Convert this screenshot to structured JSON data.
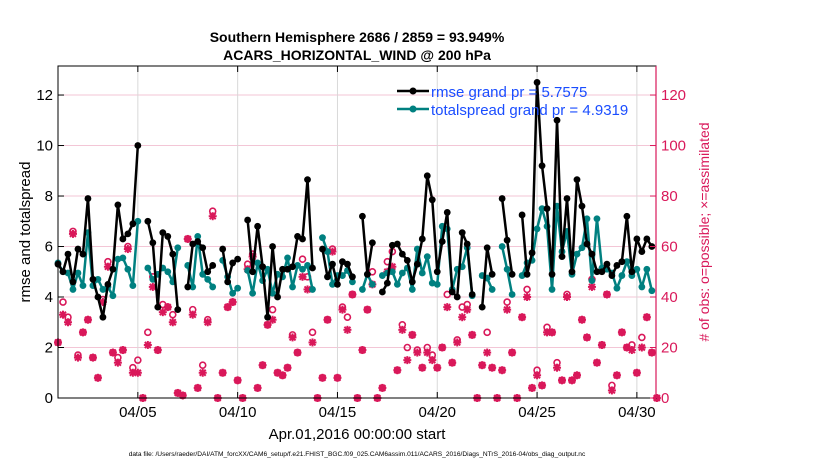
{
  "chart_data": {
    "type": "line",
    "title": "Southern Hemisphere 2686 / 2859 = 93.949%",
    "subtitle": "ACARS_HORIZONTAL_WIND @ 200 hPa",
    "xlabel": "Apr.01,2016 00:00:00 start",
    "ylabel": "rmse and totalspread",
    "ylabel_right": "# of obs: o=possible; ×=assimilated",
    "xlim": [
      "2016-04-01T00",
      "2016-04-30T23"
    ],
    "ylim": [
      0,
      13.15
    ],
    "ylim_right": [
      0,
      131.5
    ],
    "yticks": [
      0,
      2,
      4,
      6,
      8,
      10,
      12
    ],
    "yticks_right": [
      0,
      20,
      40,
      60,
      80,
      100,
      120
    ],
    "xticks": [
      {
        "label": "04/05",
        "x": "2016-04-05T00"
      },
      {
        "label": "04/10",
        "x": "2016-04-10T00"
      },
      {
        "label": "04/15",
        "x": "2016-04-15T00"
      },
      {
        "label": "04/20",
        "x": "2016-04-20T00"
      },
      {
        "label": "04/25",
        "x": "2016-04-25T00"
      },
      {
        "label": "04/30",
        "x": "2016-04-30T00"
      }
    ],
    "grid": true,
    "legend_placement": "top-right",
    "colors": {
      "rmse": "#000000",
      "totalspread": "#008080",
      "obs": "#d9185a",
      "legend_text": "#1a4dff"
    },
    "x": [
      "2016-04-01T00",
      "2016-04-01T06",
      "2016-04-01T12",
      "2016-04-01T18",
      "2016-04-02T00",
      "2016-04-02T06",
      "2016-04-02T12",
      "2016-04-02T18",
      "2016-04-03T00",
      "2016-04-03T06",
      "2016-04-03T12",
      "2016-04-03T18",
      "2016-04-04T00",
      "2016-04-04T06",
      "2016-04-04T12",
      "2016-04-04T18",
      "2016-04-05T00",
      "2016-04-05T06",
      "2016-04-05T12",
      "2016-04-05T18",
      "2016-04-06T00",
      "2016-04-06T06",
      "2016-04-06T12",
      "2016-04-06T18",
      "2016-04-07T00",
      "2016-04-07T06",
      "2016-04-07T12",
      "2016-04-07T18",
      "2016-04-08T00",
      "2016-04-08T06",
      "2016-04-08T12",
      "2016-04-08T18",
      "2016-04-09T00",
      "2016-04-09T06",
      "2016-04-09T12",
      "2016-04-09T18",
      "2016-04-10T00",
      "2016-04-10T06",
      "2016-04-10T12",
      "2016-04-10T18",
      "2016-04-11T00",
      "2016-04-11T06",
      "2016-04-11T12",
      "2016-04-11T18",
      "2016-04-12T00",
      "2016-04-12T06",
      "2016-04-12T12",
      "2016-04-12T18",
      "2016-04-13T00",
      "2016-04-13T06",
      "2016-04-13T12",
      "2016-04-13T18",
      "2016-04-14T00",
      "2016-04-14T06",
      "2016-04-14T12",
      "2016-04-14T18",
      "2016-04-15T00",
      "2016-04-15T06",
      "2016-04-15T12",
      "2016-04-15T18",
      "2016-04-16T00",
      "2016-04-16T06",
      "2016-04-16T12",
      "2016-04-16T18",
      "2016-04-17T00",
      "2016-04-17T06",
      "2016-04-17T12",
      "2016-04-17T18",
      "2016-04-18T00",
      "2016-04-18T06",
      "2016-04-18T12",
      "2016-04-18T18",
      "2016-04-19T00",
      "2016-04-19T06",
      "2016-04-19T12",
      "2016-04-19T18",
      "2016-04-20T00",
      "2016-04-20T06",
      "2016-04-20T12",
      "2016-04-20T18",
      "2016-04-21T00",
      "2016-04-21T06",
      "2016-04-21T12",
      "2016-04-21T18",
      "2016-04-22T00",
      "2016-04-22T06",
      "2016-04-22T12",
      "2016-04-22T18",
      "2016-04-23T00",
      "2016-04-23T06",
      "2016-04-23T12",
      "2016-04-23T18",
      "2016-04-24T00",
      "2016-04-24T06",
      "2016-04-24T12",
      "2016-04-24T18",
      "2016-04-25T00",
      "2016-04-25T06",
      "2016-04-25T12",
      "2016-04-25T18",
      "2016-04-26T00",
      "2016-04-26T06",
      "2016-04-26T12",
      "2016-04-26T18",
      "2016-04-27T00",
      "2016-04-27T06",
      "2016-04-27T12",
      "2016-04-27T18",
      "2016-04-28T00",
      "2016-04-28T06",
      "2016-04-28T12",
      "2016-04-28T18",
      "2016-04-29T00",
      "2016-04-29T06",
      "2016-04-29T12",
      "2016-04-29T18",
      "2016-04-30T00",
      "2016-04-30T06",
      "2016-04-30T12",
      "2016-04-30T18",
      "2016-05-01T00"
    ],
    "series": [
      {
        "name": "rmse grand pr = 5.7575",
        "axis": "left",
        "values": [
          5.3,
          5.0,
          5.7,
          4.6,
          5.9,
          5.7,
          7.9,
          4.7,
          4.0,
          3.2,
          4.5,
          5.1,
          7.65,
          6.3,
          6.5,
          6.9,
          10.0,
          null,
          7.0,
          6.15,
          3.6,
          6.55,
          6.4,
          5.7,
          3.5,
          null,
          4.4,
          6.1,
          6.2,
          5.95,
          5.0,
          5.25,
          null,
          5.9,
          4.6,
          5.35,
          5.5,
          null,
          7.05,
          5.0,
          6.8,
          5.2,
          3.2,
          6.0,
          4.0,
          5.1,
          5.1,
          5.2,
          6.4,
          6.3,
          8.65,
          5.15,
          null,
          5.9,
          4.8,
          5.3,
          4.5,
          5.4,
          5.3,
          4.8,
          null,
          7.2,
          4.9,
          6.15,
          null,
          4.2,
          4.55,
          6.05,
          6.1,
          5.7,
          5.45,
          4.6,
          5.3,
          6.3,
          8.8,
          7.85,
          5.0,
          6.2,
          7.35,
          4.2,
          4.0,
          6.55,
          6.1,
          4.1,
          null,
          3.6,
          5.95,
          4.9,
          null,
          7.9,
          6.25,
          4.9,
          null,
          7.25,
          4.9,
          5.75,
          12.5,
          9.2,
          7.5,
          4.9,
          11.0,
          5.6,
          7.9,
          5.0,
          8.65,
          7.6,
          6.1,
          5.7,
          5.0,
          5.0,
          5.3,
          4.85,
          5.25,
          5.4,
          7.2,
          5.0,
          6.3,
          5.8,
          6.3,
          6.0,
          null
        ]
      },
      {
        "name": "totalspread grand pr = 4.9319",
        "axis": "left",
        "values": [
          5.35,
          5.0,
          4.95,
          4.3,
          4.95,
          4.45,
          6.55,
          4.45,
          4.7,
          4.3,
          4.4,
          4.05,
          5.5,
          5.55,
          5.1,
          4.45,
          7.0,
          null,
          5.15,
          4.7,
          4.9,
          5.15,
          5.0,
          4.6,
          5.95,
          null,
          5.25,
          4.4,
          6.4,
          4.9,
          4.7,
          4.4,
          null,
          5.45,
          4.8,
          4.15,
          4.35,
          null,
          5.05,
          4.15,
          5.35,
          4.65,
          5.1,
          4.15,
          4.9,
          4.8,
          5.55,
          4.4,
          5.25,
          5.1,
          5.25,
          4.3,
          null,
          6.35,
          5.8,
          4.5,
          4.85,
          4.85,
          5.05,
          4.6,
          null,
          4.3,
          4.9,
          4.5,
          null,
          4.85,
          4.95,
          5.0,
          4.5,
          4.95,
          5.15,
          4.3,
          5.9,
          4.95,
          5.6,
          4.55,
          4.5,
          6.8,
          6.7,
          4.3,
          5.1,
          5.2,
          5.95,
          4.05,
          null,
          4.85,
          4.75,
          4.3,
          null,
          6.0,
          5.1,
          4.1,
          null,
          4.85,
          5.35,
          5.45,
          6.7,
          7.5,
          6.8,
          4.3,
          7.6,
          5.8,
          6.6,
          4.9,
          5.7,
          5.95,
          7.1,
          4.65,
          7.1,
          5.15,
          5.1,
          4.95,
          4.35,
          4.85,
          5.4,
          4.85,
          5.1,
          4.4,
          5.1,
          4.25,
          null
        ]
      },
      {
        "name": "possible",
        "axis": "right",
        "marker": "o",
        "values": [
          22,
          38,
          32,
          66,
          17,
          26,
          31,
          16,
          8,
          39,
          54,
          18,
          16,
          19,
          60,
          12,
          15,
          0,
          26,
          48,
          19,
          37,
          36,
          33,
          2,
          1,
          63,
          35,
          4,
          13,
          31,
          74,
          0,
          10,
          36,
          38,
          7,
          0,
          53,
          57,
          4,
          13,
          29,
          35,
          10,
          9,
          12,
          25,
          18,
          55,
          48,
          26,
          0,
          8,
          31,
          59,
          8,
          36,
          32,
          41,
          0,
          19,
          35,
          50,
          0,
          4,
          54,
          58,
          11,
          29,
          20,
          25,
          19,
          12,
          20,
          17,
          12,
          20,
          41,
          14,
          23,
          36,
          37,
          25,
          0,
          13,
          26,
          12,
          0,
          11,
          38,
          18,
          0,
          32,
          43,
          4,
          11,
          5,
          28,
          26,
          14,
          7,
          41,
          7,
          9,
          31,
          24,
          47,
          14,
          21,
          41,
          5,
          9,
          26,
          20,
          21,
          10,
          24,
          32,
          18,
          0
        ]
      },
      {
        "name": "assimilated",
        "axis": "right",
        "marker": "*",
        "values": [
          22,
          33,
          30,
          65,
          16,
          26,
          31,
          16,
          8,
          38,
          52,
          18,
          14,
          19,
          59,
          10,
          10,
          0,
          21,
          44,
          19,
          34,
          36,
          30,
          2,
          1,
          63,
          33,
          4,
          10,
          30,
          72,
          0,
          10,
          36,
          38,
          7,
          0,
          51,
          56,
          4,
          13,
          29,
          31,
          10,
          9,
          12,
          24,
          18,
          48,
          43,
          22,
          0,
          8,
          31,
          58,
          8,
          35,
          27,
          41,
          0,
          19,
          35,
          45,
          0,
          4,
          50,
          52,
          11,
          27,
          15,
          25,
          18,
          12,
          18,
          15,
          12,
          20,
          36,
          14,
          22,
          32,
          35,
          25,
          0,
          13,
          18,
          12,
          0,
          11,
          35,
          18,
          0,
          32,
          40,
          4,
          9,
          5,
          26,
          26,
          12,
          7,
          40,
          7,
          9,
          31,
          24,
          44,
          14,
          21,
          41,
          3,
          9,
          26,
          20,
          19,
          10,
          20,
          32,
          18,
          0
        ]
      }
    ]
  },
  "footer": "data file: /Users/raeder/DAI/ATM_forcXX/CAM6_setup/f.e21.FHIST_BGC.f09_025.CAM6assim.011/ACARS_2016/Diags_NTrS_2016-04/obs_diag_output.nc"
}
